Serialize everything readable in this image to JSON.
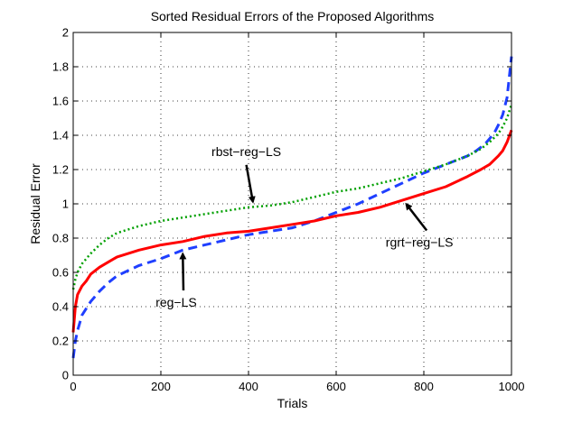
{
  "chart_data": {
    "type": "line",
    "title": "Sorted Residual Errors of the Proposed Algorithms",
    "xlabel": "Trials",
    "ylabel": "Residual Error",
    "xlim": [
      0,
      1000
    ],
    "ylim": [
      0,
      2
    ],
    "x_ticks": [
      "0",
      "200",
      "400",
      "600",
      "800",
      "1000"
    ],
    "y_ticks": [
      "0",
      "0.2",
      "0.4",
      "0.6",
      "0.8",
      "1",
      "1.2",
      "1.4",
      "1.6",
      "1.8",
      "2"
    ],
    "grid": true,
    "series": [
      {
        "name": "reg−LS",
        "color": "#1f3fff",
        "style": "dashed",
        "x": [
          0,
          5,
          10,
          20,
          40,
          60,
          80,
          100,
          150,
          200,
          250,
          300,
          350,
          400,
          450,
          500,
          550,
          600,
          650,
          700,
          750,
          800,
          850,
          900,
          920,
          940,
          960,
          970,
          980,
          990,
          1000
        ],
        "y": [
          0.1,
          0.2,
          0.26,
          0.35,
          0.43,
          0.49,
          0.54,
          0.58,
          0.64,
          0.68,
          0.73,
          0.76,
          0.79,
          0.82,
          0.84,
          0.86,
          0.9,
          0.95,
          1.0,
          1.06,
          1.12,
          1.18,
          1.23,
          1.28,
          1.31,
          1.35,
          1.41,
          1.46,
          1.52,
          1.62,
          1.86
        ]
      },
      {
        "name": "rgrt−reg−LS",
        "color": "#ff0000",
        "style": "solid",
        "x": [
          0,
          5,
          10,
          20,
          30,
          40,
          60,
          80,
          100,
          150,
          200,
          250,
          300,
          350,
          400,
          450,
          500,
          550,
          600,
          650,
          700,
          750,
          800,
          850,
          900,
          930,
          950,
          970,
          980,
          990,
          1000
        ],
        "y": [
          0.25,
          0.4,
          0.47,
          0.52,
          0.55,
          0.59,
          0.63,
          0.66,
          0.69,
          0.73,
          0.76,
          0.78,
          0.81,
          0.83,
          0.84,
          0.86,
          0.88,
          0.9,
          0.93,
          0.95,
          0.98,
          1.02,
          1.06,
          1.1,
          1.16,
          1.2,
          1.23,
          1.28,
          1.31,
          1.36,
          1.43
        ]
      },
      {
        "name": "rbst−reg−LS",
        "color": "#00a000",
        "style": "dotted",
        "x": [
          0,
          5,
          10,
          20,
          40,
          60,
          80,
          100,
          150,
          200,
          250,
          300,
          350,
          400,
          450,
          500,
          550,
          600,
          650,
          700,
          750,
          800,
          850,
          900,
          930,
          950,
          970,
          980,
          990,
          1000
        ],
        "y": [
          0.5,
          0.56,
          0.6,
          0.65,
          0.71,
          0.76,
          0.8,
          0.83,
          0.87,
          0.9,
          0.92,
          0.94,
          0.96,
          0.98,
          0.99,
          1.01,
          1.04,
          1.07,
          1.09,
          1.12,
          1.15,
          1.19,
          1.23,
          1.28,
          1.32,
          1.36,
          1.41,
          1.45,
          1.5,
          1.58
        ]
      }
    ],
    "annotations": [
      {
        "text": "rbst−reg−LS",
        "target": [
          410,
          0.98
        ],
        "anchor": [
          395,
          1.28
        ]
      },
      {
        "text": "reg−LS",
        "target": [
          250,
          0.74
        ],
        "anchor": [
          235,
          0.4
        ]
      },
      {
        "text": "rgrt−reg−LS",
        "target": [
          760,
          1.03
        ],
        "anchor": [
          790,
          0.75
        ]
      }
    ]
  }
}
